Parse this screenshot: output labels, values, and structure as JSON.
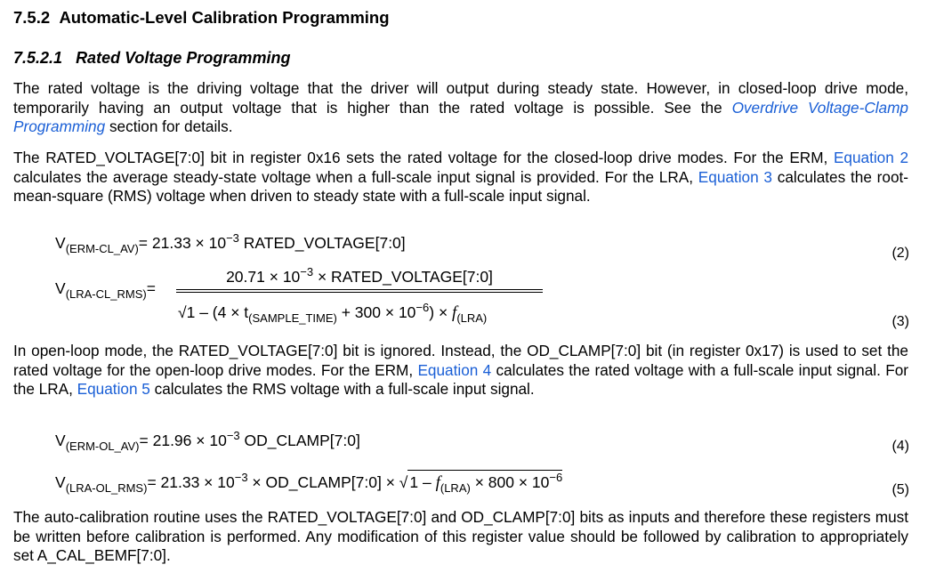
{
  "section": {
    "number": "7.5.2",
    "title": "Automatic-Level Calibration Programming"
  },
  "subsection": {
    "number": "7.5.2.1",
    "title": "Rated Voltage Programming"
  },
  "para1": {
    "t1": "The rated voltage is the driving voltage that the driver will output during steady state. However, in closed-loop drive mode, temporarily having an output voltage that is higher than the rated voltage is possible. See the ",
    "link": "Overdrive Voltage-Clamp Programming",
    "t2": " section for details."
  },
  "para2": {
    "t1": "The RATED_VOLTAGE[7:0] bit in register 0x16 sets the rated voltage for the closed-loop drive modes. For the ERM, ",
    "link1": "Equation 2",
    "t2": " calculates the average steady-state voltage when a full-scale input signal is provided. For the LRA, ",
    "link2": "Equation 3",
    "t3": " calculates the root-mean-square (RMS) voltage when driven to steady state with a full-scale input signal."
  },
  "eq2": {
    "v": "V",
    "sub": "(ERM-CL_AV)",
    "rhs1": "= 21.33 × 10",
    "exp": "−3",
    "rhs2": " RATED_VOLTAGE[7:0]",
    "number": "(2)"
  },
  "eq3": {
    "v": "V",
    "sub": "(LRA-CL_RMS)",
    "eq": "=",
    "num1": "20.71 × 10",
    "numexp": "−3",
    "num2": " × RATED_VOLTAGE[7:0]",
    "den1": "1 – (4 × t",
    "densub": "(SAMPLE_TIME)",
    "den2": " + 300 × 10",
    "denexp": "−6",
    "den3": ") × ",
    "f": "f",
    "fsub": "(LRA)",
    "number": "(3)"
  },
  "para3": {
    "t1": "In open-loop mode, the RATED_VOLTAGE[7:0] bit is ignored. Instead, the OD_CLAMP[7:0] bit (in register 0x17) is used to set the rated voltage for the open-loop drive modes. For the ERM, ",
    "link1": "Equation 4",
    "t2": " calculates the rated voltage with a full-scale input signal. For the LRA, ",
    "link2": "Equation 5",
    "t3": " calculates the RMS voltage with a full-scale input signal."
  },
  "eq4": {
    "v": "V",
    "sub": "(ERM-OL_AV)",
    "rhs1": "= 21.96 × 10",
    "exp": "−3",
    "rhs2": " OD_CLAMP[7:0]",
    "number": "(4)"
  },
  "eq5": {
    "v": "V",
    "sub": "(LRA-OL_RMS)",
    "rhs1": "= 21.33 × 10",
    "exp": "−3",
    "rhs2": " × OD_CLAMP[7:0] × ",
    "sq1": "1 – ",
    "f": "f",
    "fsub": "(LRA)",
    "sq2": " × 800 × 10",
    "sqexp": "−6",
    "number": "(5)"
  },
  "para4": {
    "text": "The auto-calibration routine uses the RATED_VOLTAGE[7:0] and OD_CLAMP[7:0] bits as inputs and therefore these registers must be written before calibration is performed. Any modification of this register value should be followed by calibration to appropriately set A_CAL_BEMF[7:0]."
  }
}
